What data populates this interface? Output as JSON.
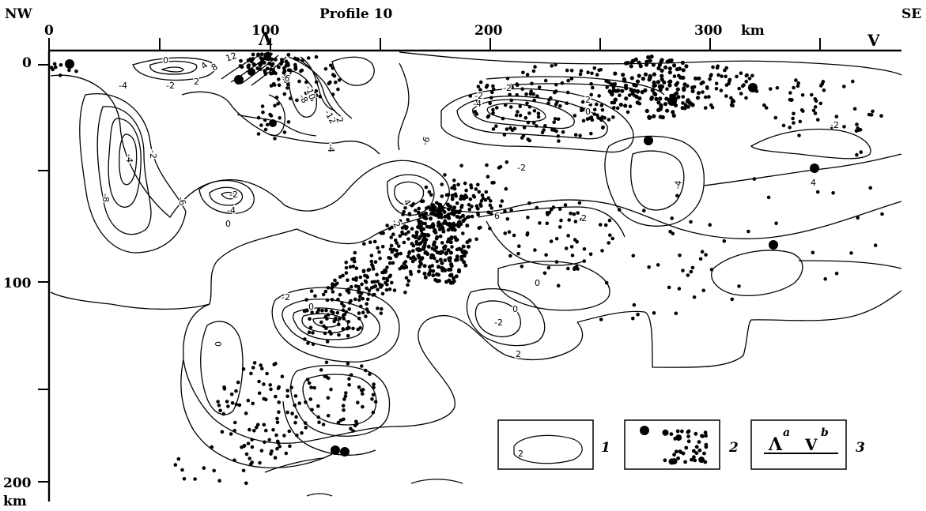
{
  "figure": {
    "title": "Profile 10",
    "direction_left": "NW",
    "direction_right": "SE",
    "x_axis": {
      "unit": "km",
      "ticks": [
        "0",
        "100",
        "200",
        "300"
      ]
    },
    "y_axis": {
      "unit": "km",
      "ticks": [
        "0",
        "100",
        "200"
      ]
    },
    "markers": {
      "a": "Λ",
      "b": "V"
    },
    "contour_labels": [
      "12",
      "8",
      "4",
      "2",
      "0",
      "-2",
      "-4",
      "-6",
      "-8",
      "-10",
      "-12",
      "2",
      "-2",
      "-4",
      "-6",
      "-8",
      "-2",
      "-4",
      "0",
      "-4",
      "4",
      "-2",
      "-6",
      "-2",
      "-4",
      "-2",
      "2",
      "0",
      "-2",
      "-4",
      "-2",
      "4",
      "6",
      "2",
      "0",
      "0",
      "-2",
      "2",
      "-2",
      "0",
      "0"
    ],
    "legend": [
      {
        "number": "1",
        "sample_label": "2"
      },
      {
        "number": "2"
      },
      {
        "number": "3",
        "sub_a": "a",
        "sub_b": "b"
      }
    ]
  }
}
